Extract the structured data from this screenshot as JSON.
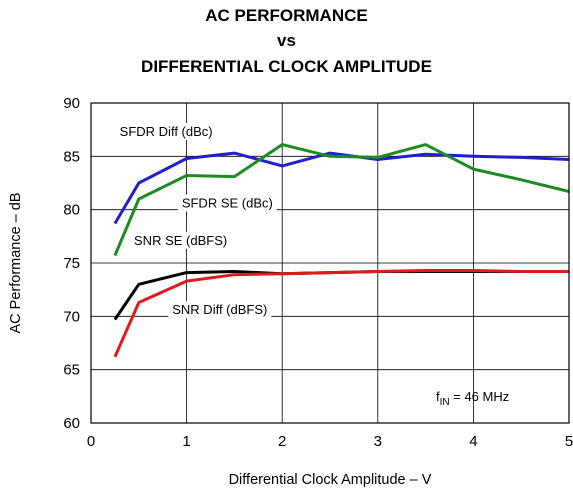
{
  "chart_data": {
    "type": "line",
    "title_lines": [
      "AC PERFORMANCE",
      "vs",
      "DIFFERENTIAL CLOCK AMPLITUDE"
    ],
    "xlabel": "Differential Clock Amplitude – V",
    "ylabel": "AC Performance – dB",
    "xlim": [
      0,
      5
    ],
    "ylim": [
      60,
      90
    ],
    "x_ticks": [
      0,
      1,
      2,
      3,
      4,
      5
    ],
    "y_ticks": [
      60,
      65,
      70,
      75,
      80,
      85,
      90
    ],
    "grid": true,
    "condition_label": {
      "prefix": "f",
      "subscript": "IN",
      "suffix": " = 46 MHz"
    },
    "series": [
      {
        "name": "SFDR Diff (dBc)",
        "color": "#1f1fd1",
        "x": [
          0.25,
          0.5,
          1.0,
          1.5,
          2.0,
          2.5,
          3.0,
          3.5,
          4.0,
          4.5,
          5.0
        ],
        "y": [
          78.7,
          82.5,
          84.8,
          85.3,
          84.1,
          85.3,
          84.7,
          85.2,
          85.0,
          84.9,
          84.7
        ]
      },
      {
        "name": "SFDR SE (dBc)",
        "color": "#1f8a1f",
        "x": [
          0.25,
          0.5,
          1.0,
          1.5,
          2.0,
          2.5,
          3.0,
          3.5,
          4.0,
          4.5,
          5.0
        ],
        "y": [
          75.7,
          81.0,
          83.2,
          83.1,
          86.1,
          85.0,
          84.9,
          86.1,
          83.8,
          82.8,
          81.7
        ]
      },
      {
        "name": "SNR SE (dBFS)",
        "color": "#000000",
        "x": [
          0.25,
          0.5,
          1.0,
          1.5,
          2.0,
          2.5,
          3.0,
          3.5,
          4.0,
          4.5,
          5.0
        ],
        "y": [
          69.7,
          73.0,
          74.1,
          74.2,
          74.0,
          74.1,
          74.2,
          74.2,
          74.2,
          74.2,
          74.2
        ]
      },
      {
        "name": "SNR Diff (dBFS)",
        "color": "#e01b1b",
        "x": [
          0.25,
          0.5,
          1.0,
          1.5,
          2.0,
          2.5,
          3.0,
          3.5,
          4.0,
          4.5,
          5.0
        ],
        "y": [
          66.2,
          71.3,
          73.3,
          73.9,
          74.0,
          74.1,
          74.2,
          74.3,
          74.3,
          74.2,
          74.2
        ]
      }
    ],
    "annotations": [
      {
        "text": "SFDR Diff (dBc)",
        "x": 0.3,
        "y": 86.9,
        "anchor": "start"
      },
      {
        "text": "SFDR SE (dBc)",
        "x": 0.95,
        "y": 80.2,
        "anchor": "start"
      },
      {
        "text": "SNR SE (dBFS)",
        "x": 0.45,
        "y": 76.7,
        "anchor": "start"
      },
      {
        "text": "SNR Diff (dBFS)",
        "x": 0.85,
        "y": 70.2,
        "anchor": "start"
      }
    ]
  }
}
